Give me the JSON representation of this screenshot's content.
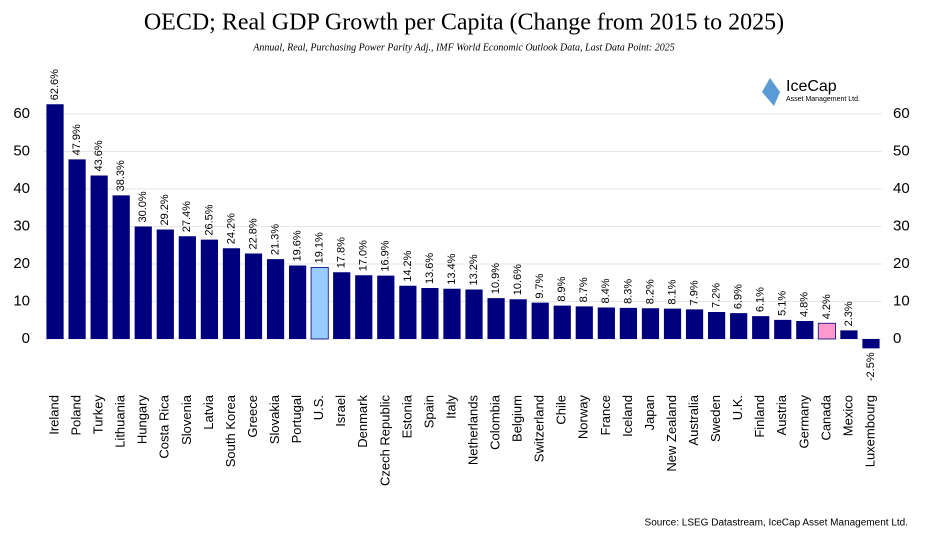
{
  "chart_data": {
    "type": "bar",
    "title": "OECD; Real GDP Growth per Capita (Change from 2015 to 2025)",
    "subtitle": "Annual, Real, Purchasing Power Parity Adj., IMF World Economic Outlook Data, Last Data Point: 2025",
    "source": "Source: LSEG Datastream, IceCap Asset Management Ltd.",
    "logo": {
      "name": "IceCap",
      "tagline": "Asset Management Ltd."
    },
    "categories": [
      "Ireland",
      "Poland",
      "Turkey",
      "Lithuania",
      "Hungary",
      "Costa Rica",
      "Slovenia",
      "Latvia",
      "South Korea",
      "Greece",
      "Slovakia",
      "Portugal",
      "U.S.",
      "Israel",
      "Denmark",
      "Czech Republic",
      "Estonia",
      "Spain",
      "Italy",
      "Netherlands",
      "Colombia",
      "Belgium",
      "Switzerland",
      "Chile",
      "Norway",
      "France",
      "Iceland",
      "Japan",
      "New Zealand",
      "Australia",
      "Sweden",
      "U.K.",
      "Finland",
      "Austria",
      "Germany",
      "Canada",
      "Mexico",
      "Luxembourg"
    ],
    "values": [
      62.6,
      47.9,
      43.6,
      38.3,
      30.0,
      29.2,
      27.4,
      26.5,
      24.2,
      22.8,
      21.3,
      19.6,
      19.1,
      17.8,
      17.0,
      16.9,
      14.2,
      13.6,
      13.4,
      13.2,
      10.9,
      10.6,
      9.7,
      8.9,
      8.7,
      8.4,
      8.3,
      8.2,
      8.1,
      7.9,
      7.2,
      6.9,
      6.1,
      5.1,
      4.8,
      4.2,
      2.3,
      -2.5
    ],
    "value_labels": [
      "62.6%",
      "47.9%",
      "43.6%",
      "38.3%",
      "30.0%",
      "29.2%",
      "27.4%",
      "26.5%",
      "24.2%",
      "22.8%",
      "21.3%",
      "19.6%",
      "19.1%",
      "17.8%",
      "17.0%",
      "16.9%",
      "14.2%",
      "13.6%",
      "13.4%",
      "13.2%",
      "10.9%",
      "10.6%",
      "9.7%",
      "8.9%",
      "8.7%",
      "8.4%",
      "8.3%",
      "8.2%",
      "8.1%",
      "7.9%",
      "7.2%",
      "6.9%",
      "6.1%",
      "5.1%",
      "4.8%",
      "4.2%",
      "2.3%",
      "-2.5%"
    ],
    "colors": [
      "#00007f",
      "#00007f",
      "#00007f",
      "#00007f",
      "#00007f",
      "#00007f",
      "#00007f",
      "#00007f",
      "#00007f",
      "#00007f",
      "#00007f",
      "#00007f",
      "#99ccff",
      "#00007f",
      "#00007f",
      "#00007f",
      "#00007f",
      "#00007f",
      "#00007f",
      "#00007f",
      "#00007f",
      "#00007f",
      "#00007f",
      "#00007f",
      "#00007f",
      "#00007f",
      "#00007f",
      "#00007f",
      "#00007f",
      "#00007f",
      "#00007f",
      "#00007f",
      "#00007f",
      "#00007f",
      "#00007f",
      "#ff99cc",
      "#00007f",
      "#00007f"
    ],
    "ylim": [
      -5,
      65
    ],
    "yticks": [
      0,
      10,
      20,
      30,
      40,
      50,
      60
    ],
    "grid": true
  }
}
